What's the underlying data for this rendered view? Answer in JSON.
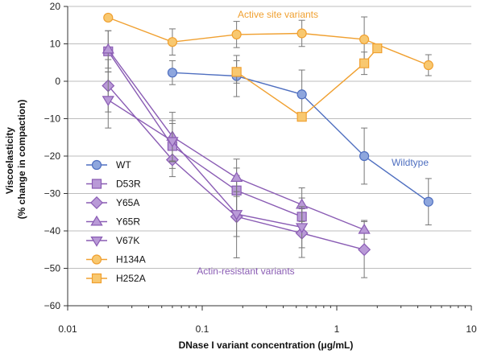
{
  "chart_data": {
    "type": "line",
    "xlabel": "DNase I variant concentration (μg/mL)",
    "ylabel_lines": [
      "Viscoelasticity",
      "(% change in compaction)"
    ],
    "x_scale": "log",
    "xlim": [
      0.01,
      10
    ],
    "ylim": [
      -60,
      20
    ],
    "x_ticks": [
      0.01,
      0.1,
      1,
      10
    ],
    "x_tick_labels": [
      "0.01",
      "0.1",
      "1",
      "10"
    ],
    "y_ticks": [
      20,
      10,
      0,
      -10,
      -20,
      -30,
      -40,
      -50,
      -60
    ],
    "y_tick_labels": [
      "20",
      "10",
      "0",
      "−10",
      "−20",
      "−30",
      "−40",
      "−50",
      "−60"
    ],
    "grid": "horizontal",
    "legend_placement": "lower-left",
    "series": [
      {
        "name": "WT",
        "marker": "circle",
        "color": "#4f6fc0",
        "fill": "#8ea6dd",
        "points": [
          [
            0.06,
            2.3,
            3.2
          ],
          [
            0.18,
            1.4,
            5.5
          ],
          [
            0.55,
            -3.5,
            6.5
          ],
          [
            1.6,
            -20,
            7.5
          ],
          [
            4.8,
            -32.2,
            6.2
          ]
        ]
      },
      {
        "name": "D53R",
        "marker": "square",
        "color": "#8a5cb4",
        "fill": "#b99ad7",
        "points": [
          [
            0.02,
            8.0,
            5.5
          ],
          [
            0.06,
            -17.3,
            6.0
          ],
          [
            0.18,
            -29.2,
            6.0
          ],
          [
            0.55,
            -36.2,
            5.0
          ]
        ]
      },
      {
        "name": "Y65A",
        "marker": "diamond",
        "color": "#8a5cb4",
        "fill": "#b99ad7",
        "points": [
          [
            0.02,
            -1.2,
            7.0
          ],
          [
            0.06,
            -21.0,
            4.5
          ],
          [
            0.18,
            -36.2,
            11.0
          ],
          [
            0.55,
            -40.6,
            6.5
          ],
          [
            1.6,
            -45.0,
            7.5
          ]
        ]
      },
      {
        "name": "Y65R",
        "marker": "triangle-up",
        "color": "#8a5cb4",
        "fill": "#b99ad7",
        "points": [
          [
            0.02,
            8.5,
            5.0
          ],
          [
            0.06,
            -14.8,
            6.5
          ],
          [
            0.18,
            -25.8,
            5.0
          ],
          [
            0.55,
            -33.0,
            4.5
          ],
          [
            1.6,
            -39.7,
            2.5
          ]
        ]
      },
      {
        "name": "V67K",
        "marker": "triangle-down",
        "color": "#8a5cb4",
        "fill": "#b99ad7",
        "points": [
          [
            0.02,
            -5.0,
            7.5
          ],
          [
            0.06,
            -16.0,
            5.5
          ],
          [
            0.18,
            -35.5,
            6.0
          ],
          [
            0.55,
            -39.0,
            5.5
          ]
        ]
      },
      {
        "name": "H134A",
        "marker": "circle",
        "color": "#f0a030",
        "fill": "#f8c870",
        "points": [
          [
            0.02,
            17.0,
            0
          ],
          [
            0.06,
            10.5,
            3.5
          ],
          [
            0.18,
            12.5,
            3.5
          ],
          [
            0.55,
            12.8,
            3.5
          ],
          [
            1.6,
            11.2,
            6.0
          ],
          [
            4.8,
            4.3,
            2.8
          ]
        ]
      },
      {
        "name": "H252A",
        "marker": "square",
        "color": "#f0a030",
        "fill": "#f8c870",
        "points": [
          [
            0.18,
            2.5,
            3.0
          ],
          [
            0.55,
            -9.5,
            0
          ],
          [
            1.6,
            4.8,
            3.0
          ],
          [
            2.0,
            8.8,
            0
          ]
        ]
      }
    ],
    "annotations": [
      {
        "text": "Active site variants",
        "color": "#f0a030"
      },
      {
        "text": "Wildtype",
        "color": "#4f6fc0"
      },
      {
        "text": "Actin-resistant variants",
        "color": "#8a5cb4"
      }
    ]
  }
}
